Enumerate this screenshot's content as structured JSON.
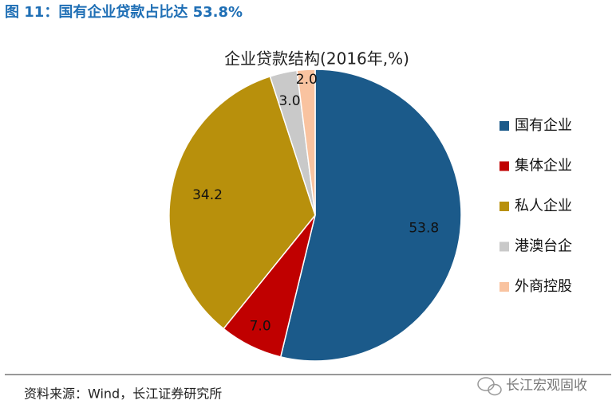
{
  "header": {
    "title": "图 11：国有企业贷款占比达 53.8%"
  },
  "chart_data": {
    "type": "pie",
    "title": "企业贷款结构(2016年,%)",
    "categories": [
      "国有企业",
      "集体企业",
      "私人企业",
      "港澳台企",
      "外商控股"
    ],
    "values": [
      53.8,
      7,
      34.2,
      3,
      2
    ],
    "value_labels": [
      "53.8",
      "7.0",
      "34.2",
      "3.0",
      "2.0"
    ],
    "colors": [
      "#1b5a8a",
      "#c00000",
      "#b8900c",
      "#c9c9c9",
      "#f9c3a0"
    ],
    "legend": "right"
  },
  "footer": {
    "source": "资料来源：Wind，长江证券研究所",
    "watermark": "长江宏观固收"
  }
}
